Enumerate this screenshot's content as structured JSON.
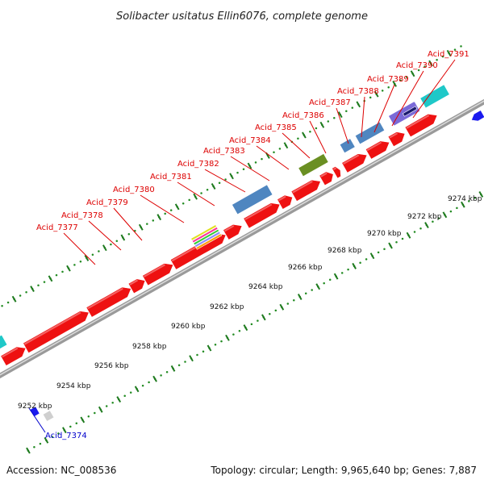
{
  "title": "Solibacter usitatus Ellin6076, complete genome",
  "footer": {
    "accession": "Accession: NC_008536",
    "topology": "Topology: circular; Length: 9,965,640 bp; Genes: 7,887"
  },
  "colors": {
    "cds": "#ee1111",
    "backbone": "#8a8a8a",
    "scale_ticks": "#228b22",
    "label_top": "#dd0000",
    "label_bottom": "#0000cc",
    "steelblue": "#4f86c0",
    "olive": "#6a8f22",
    "cyan": "#1fc8c8",
    "purple": "#7a6ad8"
  },
  "scale_labels": [
    "9252 kbp",
    "9254 kbp",
    "9256 kbp",
    "9258 kbp",
    "9260 kbp",
    "9262 kbp",
    "9264 kbp",
    "9266 kbp",
    "9268 kbp",
    "9270 kbp",
    "9272 kbp",
    "9274 kbp"
  ],
  "gene_labels_top": [
    "Acid_7377",
    "Acid_7378",
    "Acid_7379",
    "Acid_7380",
    "Acid_7381",
    "Acid_7382",
    "Acid_7383",
    "Acid_7384",
    "Acid_7385",
    "Acid_7386",
    "Acid_7387",
    "Acid_7388",
    "Acid_7389",
    "Acid_7390",
    "Acid_7391"
  ],
  "gene_labels_bottom": [
    "Acid_7374"
  ]
}
